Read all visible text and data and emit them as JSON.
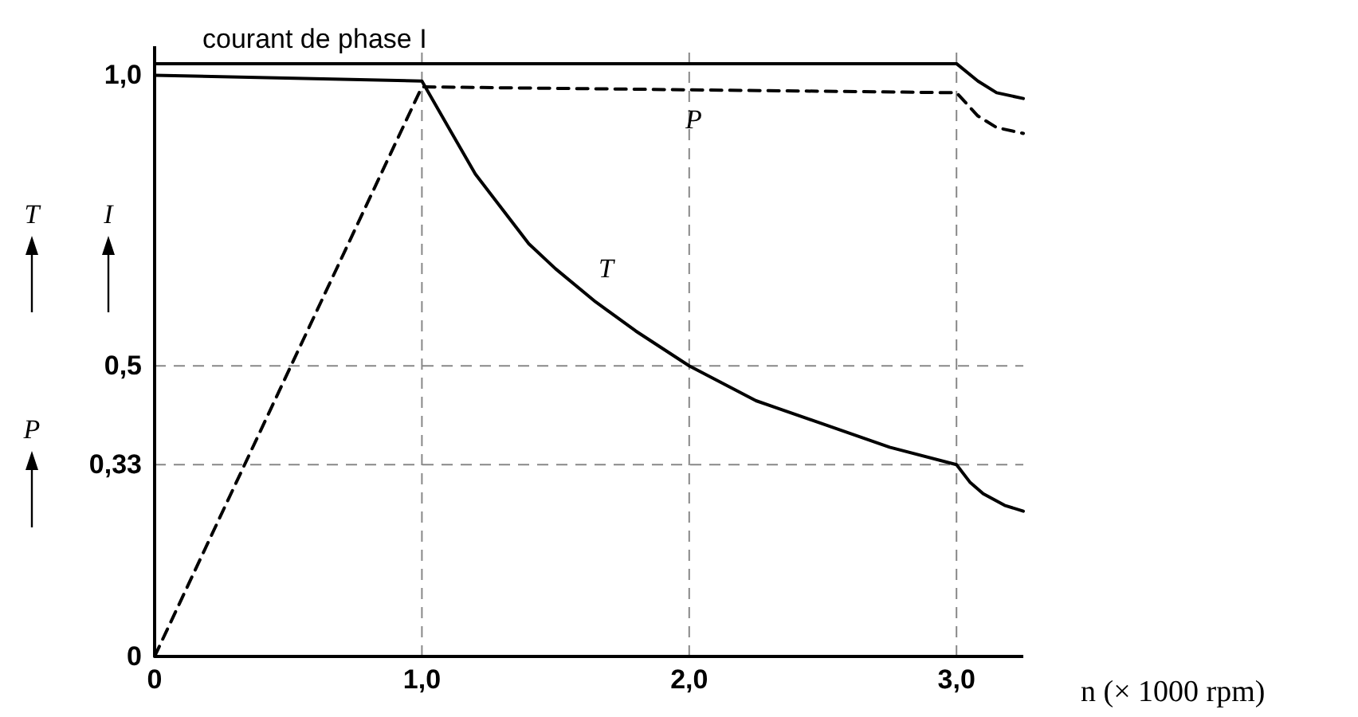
{
  "chart_data": {
    "type": "line",
    "xlabel": "n (× 1000 rpm)",
    "ylabel": "T I P",
    "xlim": [
      0,
      3.25
    ],
    "xticks": [
      0,
      {
        "value": 1,
        "label": "1,0"
      },
      {
        "value": 2,
        "label": "2,0"
      },
      {
        "value": 3,
        "label": "3,0"
      }
    ],
    "ylim": [
      0,
      1.05
    ],
    "yticks": [
      0,
      {
        "value": 0.33,
        "label": "0,33"
      },
      {
        "value": 0.5,
        "label": "0,5"
      },
      {
        "value": 1,
        "label": "1,0"
      }
    ],
    "grid": false,
    "series": [
      {
        "name": "courant de phase I",
        "color": "#000000",
        "line_style": "solid",
        "x": [
          0,
          3.0,
          3.08,
          3.15,
          3.25
        ],
        "values": [
          1.02,
          1.02,
          0.99,
          0.97,
          0.96
        ]
      },
      {
        "name": "P",
        "color": "#000000",
        "line_style": "dashed",
        "x": [
          0,
          1.0,
          3.0,
          3.08,
          3.15,
          3.25
        ],
        "values": [
          0,
          0.98,
          0.97,
          0.93,
          0.91,
          0.9
        ]
      },
      {
        "name": "T",
        "color": "#000000",
        "line_style": "solid",
        "x": [
          0,
          1.0,
          1.1,
          1.2,
          1.3,
          1.4,
          1.5,
          1.65,
          1.8,
          2.0,
          2.25,
          2.5,
          2.75,
          3.0,
          3.05,
          3.1,
          3.18,
          3.25
        ],
        "values": [
          1.0,
          0.99,
          0.91,
          0.83,
          0.77,
          0.71,
          0.667,
          0.61,
          0.56,
          0.5,
          0.44,
          0.4,
          0.36,
          0.33,
          0.3,
          0.28,
          0.26,
          0.25
        ]
      }
    ],
    "ref_lines": [
      {
        "axis": "x",
        "value": 1,
        "color": "#888888",
        "line_style": "dashed"
      },
      {
        "axis": "x",
        "value": 2,
        "color": "#888888",
        "line_style": "dashed"
      },
      {
        "axis": "x",
        "value": 3,
        "color": "#888888",
        "line_style": "dashed"
      },
      {
        "axis": "y",
        "value": 0.5,
        "color": "#888888",
        "line_style": "dashed"
      },
      {
        "axis": "y",
        "value": 0.33,
        "color": "#888888",
        "line_style": "dashed"
      }
    ]
  }
}
